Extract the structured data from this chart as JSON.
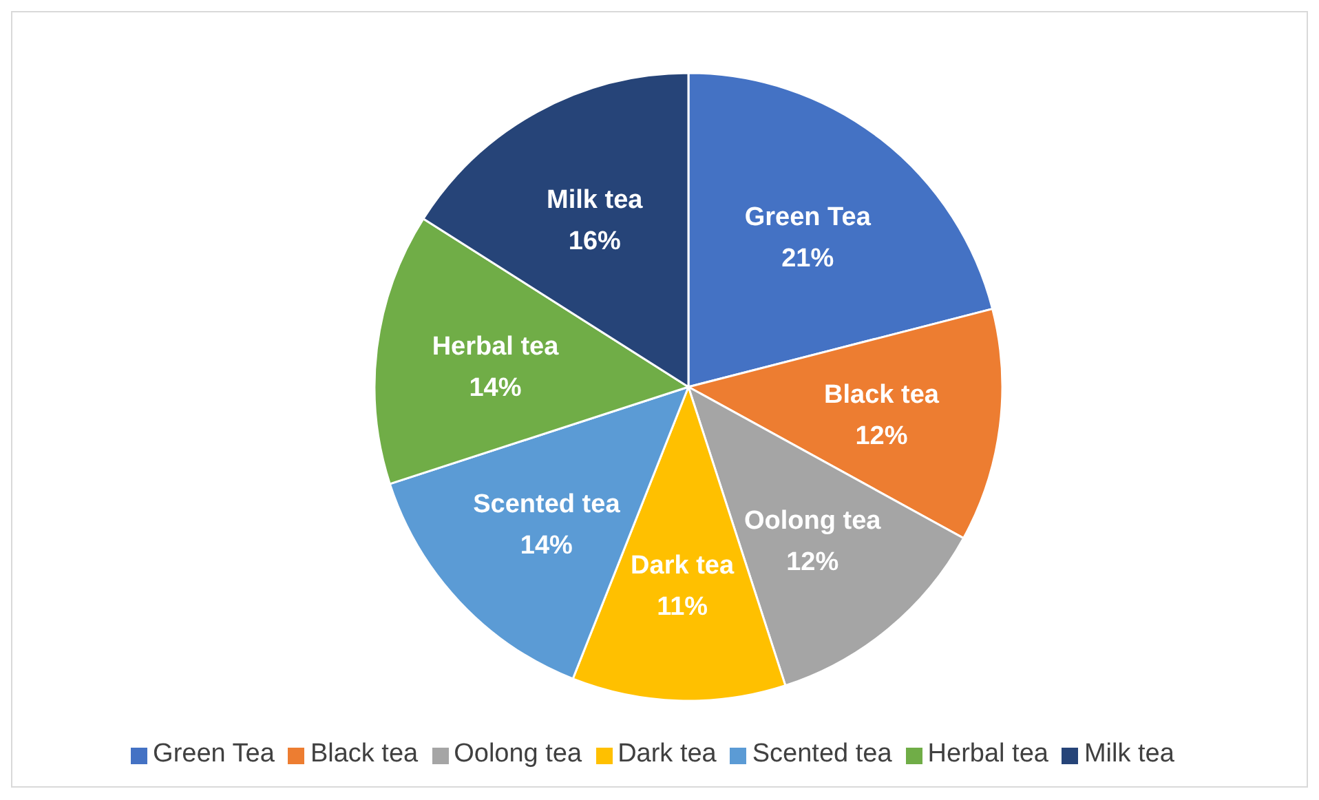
{
  "chart_data": {
    "type": "pie",
    "categories": [
      "Green Tea",
      "Black tea",
      "Oolong tea",
      "Dark tea",
      "Scented tea",
      "Herbal tea",
      "Milk tea"
    ],
    "values": [
      21,
      12,
      12,
      11,
      14,
      14,
      16
    ],
    "value_labels": [
      "21%",
      "12%",
      "12%",
      "11%",
      "14%",
      "14%",
      "16%"
    ],
    "colors": [
      "#4472c4",
      "#ed7d31",
      "#a5a5a5",
      "#ffc000",
      "#5b9bd5",
      "#70ad47",
      "#264478"
    ],
    "legend": "bottom"
  }
}
